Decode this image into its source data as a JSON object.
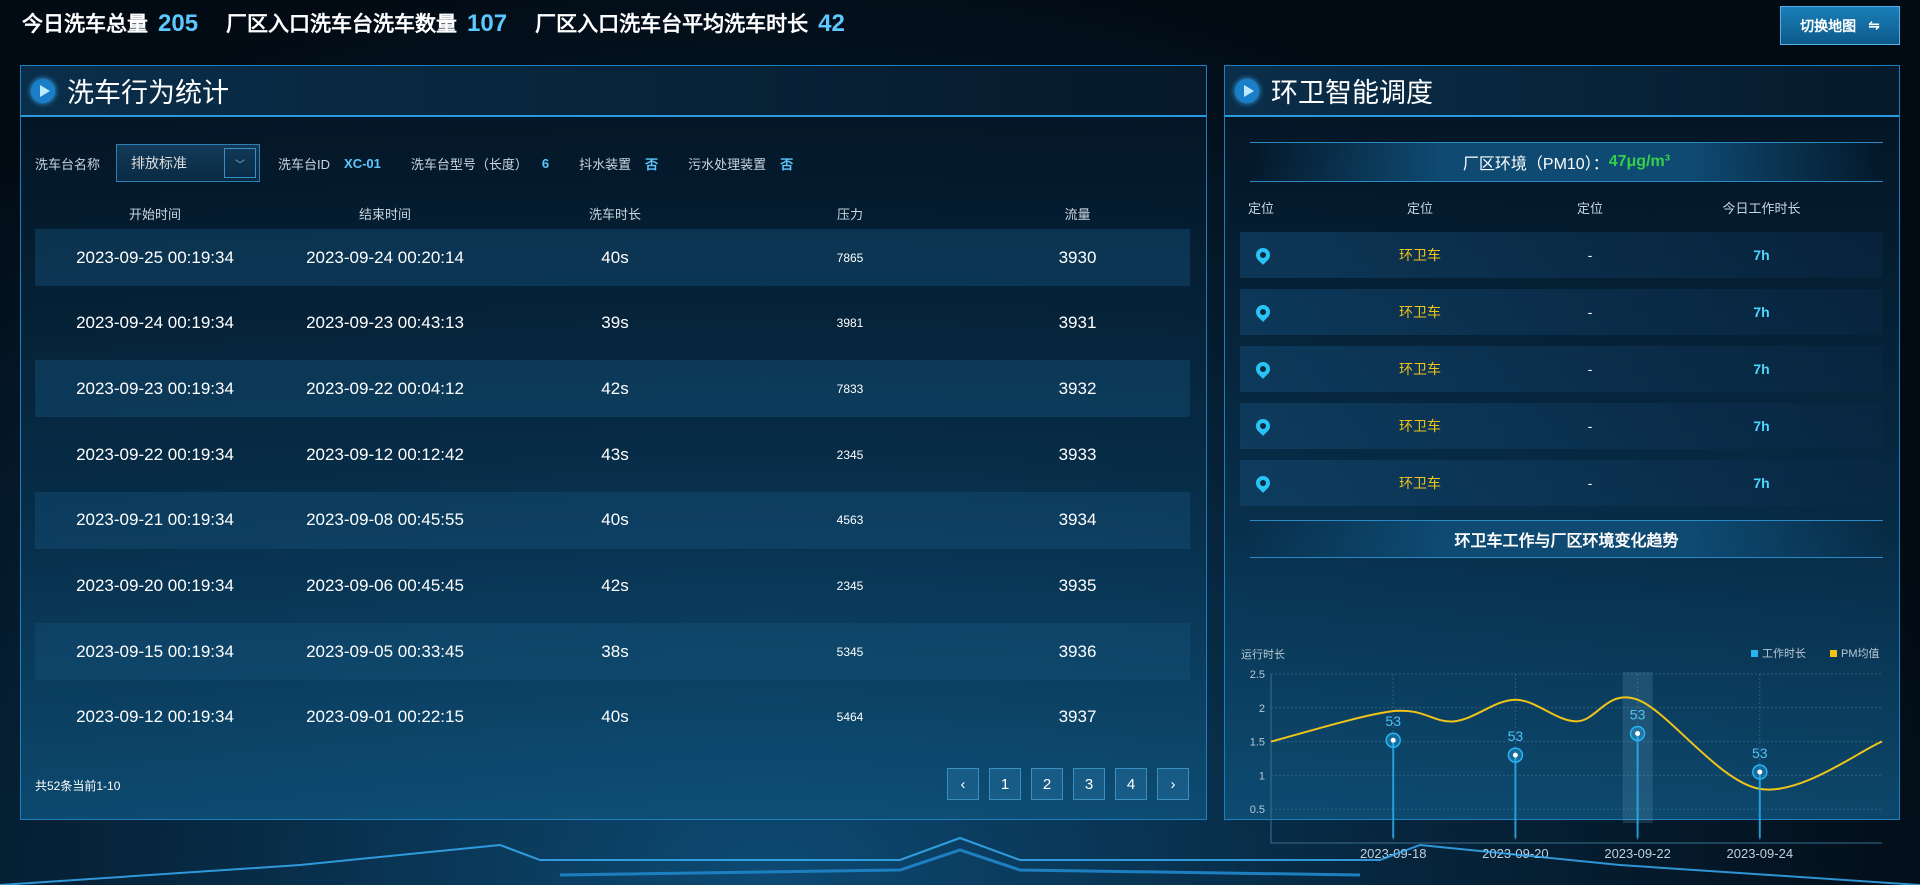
{
  "stats": [
    {
      "label": "今日洗车总量",
      "value": "205"
    },
    {
      "label": "厂区入口洗车台洗车数量",
      "value": "107"
    },
    {
      "label": "厂区入口洗车台平均洗车时长",
      "value": "42"
    }
  ],
  "switch_button": {
    "label": "切换地图",
    "icon": "swap-arrows-icon"
  },
  "left_panel": {
    "title": "洗车行为统计",
    "filter": {
      "name_label": "洗车台名称",
      "selected": "排放标准",
      "id_label": "洗车台ID",
      "id_value": "XC-01",
      "model_label": "洗车台型号（长度）",
      "model_value": "6",
      "drain_label": "抖水装置",
      "drain_value": "否",
      "sewage_label": "污水处理装置",
      "sewage_value": "否"
    },
    "columns": [
      "开始时间",
      "结束时间",
      "洗车时长",
      "压力",
      "流量"
    ],
    "rows": [
      [
        "2023-09-25 00:19:34",
        "2023-09-24 00:20:14",
        "40s",
        "7865",
        "3930"
      ],
      [
        "2023-09-24 00:19:34",
        "2023-09-23 00:43:13",
        "39s",
        "3981",
        "3931"
      ],
      [
        "2023-09-23 00:19:34",
        "2023-09-22 00:04:12",
        "42s",
        "7833",
        "3932"
      ],
      [
        "2023-09-22 00:19:34",
        "2023-09-12 00:12:42",
        "43s",
        "2345",
        "3933"
      ],
      [
        "2023-09-21 00:19:34",
        "2023-09-08 00:45:55",
        "40s",
        "4563",
        "3934"
      ],
      [
        "2023-09-20 00:19:34",
        "2023-09-06 00:45:45",
        "42s",
        "2345",
        "3935"
      ],
      [
        "2023-09-15 00:19:34",
        "2023-09-05 00:33:45",
        "38s",
        "5345",
        "3936"
      ],
      [
        "2023-09-12 00:19:34",
        "2023-09-01 00:22:15",
        "40s",
        "5464",
        "3937"
      ]
    ],
    "total": "共52条当前1-10",
    "pager": {
      "prev": "‹",
      "pages": [
        "1",
        "2",
        "3",
        "4"
      ],
      "next": "›"
    }
  },
  "right_panel": {
    "title": "环卫智能调度",
    "pm_label": "厂区环境（PM10）：",
    "pm_value": "47μg/m³",
    "columns": [
      "定位",
      "定位",
      "定位",
      "今日工作时长"
    ],
    "rows": [
      {
        "name": "环卫车",
        "status": "-",
        "hours": "7h"
      },
      {
        "name": "环卫车",
        "status": "-",
        "hours": "7h"
      },
      {
        "name": "环卫车",
        "status": "-",
        "hours": "7h"
      },
      {
        "name": "环卫车",
        "status": "-",
        "hours": "7h"
      },
      {
        "name": "环卫车",
        "status": "-",
        "hours": "7h"
      }
    ],
    "chart_title": "环卫车工作与厂区环境变化趋势"
  },
  "chart_data": {
    "type": "line",
    "ylabel": "运行时长",
    "ylim": [
      0,
      2.5
    ],
    "yticks": [
      "0.5",
      "1",
      "1.5",
      "2",
      "2.5"
    ],
    "xticks": [
      "2023-09-18",
      "2023-09-20",
      "2023-09-22",
      "2023-09-24"
    ],
    "grid": true,
    "legend_position": "top-right",
    "highlight": "2023-09-22",
    "series": [
      {
        "name": "工作时长",
        "type": "pin",
        "color": "#27b4f5",
        "points": [
          {
            "x": "2023-09-18",
            "y": 1.52,
            "label": "53"
          },
          {
            "x": "2023-09-20",
            "y": 1.3,
            "label": "53"
          },
          {
            "x": "2023-09-22",
            "y": 1.62,
            "label": "53"
          },
          {
            "x": "2023-09-24",
            "y": 1.05,
            "label": "53"
          }
        ]
      },
      {
        "name": "PM均值",
        "type": "smooth-line",
        "color": "#f0c419",
        "points": [
          {
            "x": "2023-09-16",
            "y": 1.5
          },
          {
            "x": "2023-09-18",
            "y": 1.95
          },
          {
            "x": "2023-09-19",
            "y": 1.8
          },
          {
            "x": "2023-09-20",
            "y": 2.12
          },
          {
            "x": "2023-09-21",
            "y": 1.8
          },
          {
            "x": "2023-09-22",
            "y": 2.12
          },
          {
            "x": "2023-09-24",
            "y": 0.8
          },
          {
            "x": "2023-09-26",
            "y": 1.5
          }
        ]
      }
    ]
  }
}
